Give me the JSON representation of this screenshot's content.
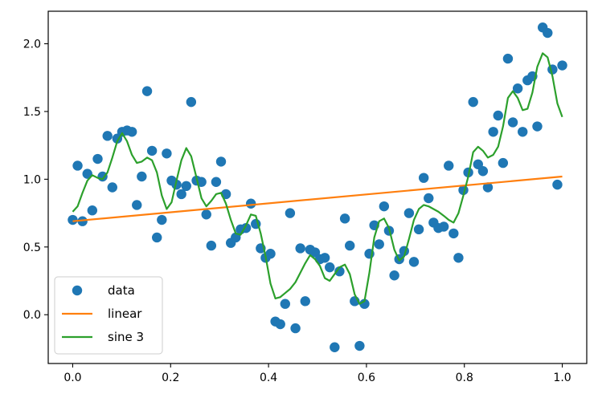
{
  "chart_data": {
    "type": "scatter",
    "xlim": [
      -0.05,
      1.05
    ],
    "ylim": [
      -0.36,
      2.24
    ],
    "grid": false,
    "legend_position": "bottom-left",
    "x_ticks": [
      {
        "value": 0.0,
        "label": "0.0"
      },
      {
        "value": 0.2,
        "label": "0.2"
      },
      {
        "value": 0.4,
        "label": "0.4"
      },
      {
        "value": 0.6,
        "label": "0.6"
      },
      {
        "value": 0.8,
        "label": "0.8"
      },
      {
        "value": 1.0,
        "label": "1.0"
      }
    ],
    "y_ticks": [
      {
        "value": 0.0,
        "label": "0.0"
      },
      {
        "value": 0.5,
        "label": "0.5"
      },
      {
        "value": 1.0,
        "label": "1.0"
      },
      {
        "value": 1.5,
        "label": "1.5"
      },
      {
        "value": 2.0,
        "label": "2.0"
      }
    ],
    "series": [
      {
        "name": "data",
        "kind": "points",
        "color": "#1f77b4",
        "points": [
          [
            0.0,
            0.7
          ],
          [
            0.01,
            1.1
          ],
          [
            0.02,
            0.69
          ],
          [
            0.03,
            1.04
          ],
          [
            0.04,
            0.77
          ],
          [
            0.051,
            1.15
          ],
          [
            0.061,
            1.02
          ],
          [
            0.071,
            1.32
          ],
          [
            0.081,
            0.94
          ],
          [
            0.091,
            1.3
          ],
          [
            0.101,
            1.35
          ],
          [
            0.111,
            1.36
          ],
          [
            0.121,
            1.35
          ],
          [
            0.131,
            0.81
          ],
          [
            0.141,
            1.02
          ],
          [
            0.152,
            1.65
          ],
          [
            0.162,
            1.21
          ],
          [
            0.172,
            0.57
          ],
          [
            0.182,
            0.7
          ],
          [
            0.192,
            1.19
          ],
          [
            0.202,
            0.99
          ],
          [
            0.212,
            0.96
          ],
          [
            0.222,
            0.89
          ],
          [
            0.232,
            0.95
          ],
          [
            0.242,
            1.57
          ],
          [
            0.253,
            0.99
          ],
          [
            0.263,
            0.98
          ],
          [
            0.273,
            0.74
          ],
          [
            0.283,
            0.51
          ],
          [
            0.293,
            0.98
          ],
          [
            0.303,
            1.13
          ],
          [
            0.313,
            0.89
          ],
          [
            0.323,
            0.53
          ],
          [
            0.333,
            0.57
          ],
          [
            0.343,
            0.63
          ],
          [
            0.354,
            0.64
          ],
          [
            0.364,
            0.82
          ],
          [
            0.374,
            0.67
          ],
          [
            0.384,
            0.49
          ],
          [
            0.394,
            0.42
          ],
          [
            0.404,
            0.45
          ],
          [
            0.414,
            -0.05
          ],
          [
            0.424,
            -0.07
          ],
          [
            0.434,
            0.08
          ],
          [
            0.444,
            0.75
          ],
          [
            0.455,
            -0.1
          ],
          [
            0.465,
            0.49
          ],
          [
            0.475,
            0.1
          ],
          [
            0.485,
            0.48
          ],
          [
            0.495,
            0.46
          ],
          [
            0.505,
            0.41
          ],
          [
            0.515,
            0.42
          ],
          [
            0.525,
            0.35
          ],
          [
            0.535,
            -0.24
          ],
          [
            0.545,
            0.32
          ],
          [
            0.556,
            0.71
          ],
          [
            0.566,
            0.51
          ],
          [
            0.576,
            0.1
          ],
          [
            0.586,
            -0.23
          ],
          [
            0.596,
            0.08
          ],
          [
            0.606,
            0.45
          ],
          [
            0.616,
            0.66
          ],
          [
            0.626,
            0.52
          ],
          [
            0.636,
            0.8
          ],
          [
            0.646,
            0.62
          ],
          [
            0.657,
            0.29
          ],
          [
            0.667,
            0.41
          ],
          [
            0.677,
            0.47
          ],
          [
            0.687,
            0.75
          ],
          [
            0.697,
            0.39
          ],
          [
            0.707,
            0.63
          ],
          [
            0.717,
            1.01
          ],
          [
            0.727,
            0.86
          ],
          [
            0.737,
            0.68
          ],
          [
            0.747,
            0.64
          ],
          [
            0.758,
            0.65
          ],
          [
            0.768,
            1.1
          ],
          [
            0.778,
            0.6
          ],
          [
            0.788,
            0.42
          ],
          [
            0.798,
            0.92
          ],
          [
            0.808,
            1.05
          ],
          [
            0.818,
            1.57
          ],
          [
            0.828,
            1.11
          ],
          [
            0.838,
            1.06
          ],
          [
            0.848,
            0.94
          ],
          [
            0.859,
            1.35
          ],
          [
            0.869,
            1.47
          ],
          [
            0.879,
            1.12
          ],
          [
            0.889,
            1.89
          ],
          [
            0.899,
            1.42
          ],
          [
            0.909,
            1.67
          ],
          [
            0.919,
            1.35
          ],
          [
            0.929,
            1.73
          ],
          [
            0.939,
            1.76
          ],
          [
            0.949,
            1.39
          ],
          [
            0.96,
            2.12
          ],
          [
            0.97,
            2.08
          ],
          [
            0.98,
            1.81
          ],
          [
            0.99,
            0.96
          ],
          [
            1.0,
            1.84
          ]
        ]
      },
      {
        "name": "linear",
        "kind": "line",
        "color": "#ff7f0e",
        "points": [
          [
            0.0,
            0.69
          ],
          [
            1.0,
            1.02
          ]
        ]
      },
      {
        "name": "sine 3",
        "kind": "line",
        "color": "#2ca02c",
        "points": [
          [
            0.0,
            0.76
          ],
          [
            0.01,
            0.8
          ],
          [
            0.02,
            0.9
          ],
          [
            0.03,
            0.99
          ],
          [
            0.04,
            1.03
          ],
          [
            0.051,
            1.01
          ],
          [
            0.061,
            1.0
          ],
          [
            0.071,
            1.05
          ],
          [
            0.081,
            1.16
          ],
          [
            0.091,
            1.28
          ],
          [
            0.101,
            1.34
          ],
          [
            0.111,
            1.28
          ],
          [
            0.121,
            1.18
          ],
          [
            0.131,
            1.12
          ],
          [
            0.141,
            1.13
          ],
          [
            0.152,
            1.16
          ],
          [
            0.162,
            1.14
          ],
          [
            0.172,
            1.05
          ],
          [
            0.182,
            0.88
          ],
          [
            0.192,
            0.78
          ],
          [
            0.202,
            0.83
          ],
          [
            0.212,
            0.99
          ],
          [
            0.222,
            1.14
          ],
          [
            0.232,
            1.23
          ],
          [
            0.242,
            1.17
          ],
          [
            0.253,
            1.01
          ],
          [
            0.263,
            0.86
          ],
          [
            0.273,
            0.8
          ],
          [
            0.283,
            0.84
          ],
          [
            0.293,
            0.89
          ],
          [
            0.303,
            0.9
          ],
          [
            0.313,
            0.82
          ],
          [
            0.323,
            0.7
          ],
          [
            0.333,
            0.6
          ],
          [
            0.343,
            0.59
          ],
          [
            0.354,
            0.66
          ],
          [
            0.364,
            0.74
          ],
          [
            0.374,
            0.73
          ],
          [
            0.384,
            0.6
          ],
          [
            0.394,
            0.43
          ],
          [
            0.404,
            0.23
          ],
          [
            0.414,
            0.12
          ],
          [
            0.424,
            0.13
          ],
          [
            0.434,
            0.16
          ],
          [
            0.444,
            0.19
          ],
          [
            0.455,
            0.24
          ],
          [
            0.465,
            0.31
          ],
          [
            0.475,
            0.38
          ],
          [
            0.485,
            0.44
          ],
          [
            0.495,
            0.41
          ],
          [
            0.505,
            0.36
          ],
          [
            0.515,
            0.27
          ],
          [
            0.525,
            0.25
          ],
          [
            0.535,
            0.3
          ],
          [
            0.545,
            0.35
          ],
          [
            0.556,
            0.37
          ],
          [
            0.566,
            0.3
          ],
          [
            0.576,
            0.15
          ],
          [
            0.586,
            0.08
          ],
          [
            0.596,
            0.1
          ],
          [
            0.606,
            0.31
          ],
          [
            0.616,
            0.57
          ],
          [
            0.626,
            0.69
          ],
          [
            0.636,
            0.71
          ],
          [
            0.646,
            0.64
          ],
          [
            0.657,
            0.48
          ],
          [
            0.667,
            0.4
          ],
          [
            0.677,
            0.43
          ],
          [
            0.687,
            0.56
          ],
          [
            0.697,
            0.7
          ],
          [
            0.707,
            0.78
          ],
          [
            0.717,
            0.81
          ],
          [
            0.727,
            0.8
          ],
          [
            0.737,
            0.78
          ],
          [
            0.747,
            0.76
          ],
          [
            0.758,
            0.73
          ],
          [
            0.768,
            0.7
          ],
          [
            0.778,
            0.68
          ],
          [
            0.788,
            0.75
          ],
          [
            0.798,
            0.88
          ],
          [
            0.808,
            1.02
          ],
          [
            0.818,
            1.2
          ],
          [
            0.828,
            1.24
          ],
          [
            0.838,
            1.21
          ],
          [
            0.848,
            1.16
          ],
          [
            0.859,
            1.18
          ],
          [
            0.869,
            1.24
          ],
          [
            0.879,
            1.39
          ],
          [
            0.889,
            1.6
          ],
          [
            0.899,
            1.65
          ],
          [
            0.909,
            1.6
          ],
          [
            0.919,
            1.51
          ],
          [
            0.929,
            1.52
          ],
          [
            0.939,
            1.64
          ],
          [
            0.949,
            1.83
          ],
          [
            0.96,
            1.93
          ],
          [
            0.97,
            1.9
          ],
          [
            0.98,
            1.76
          ],
          [
            0.99,
            1.56
          ],
          [
            1.0,
            1.46
          ]
        ]
      }
    ]
  }
}
